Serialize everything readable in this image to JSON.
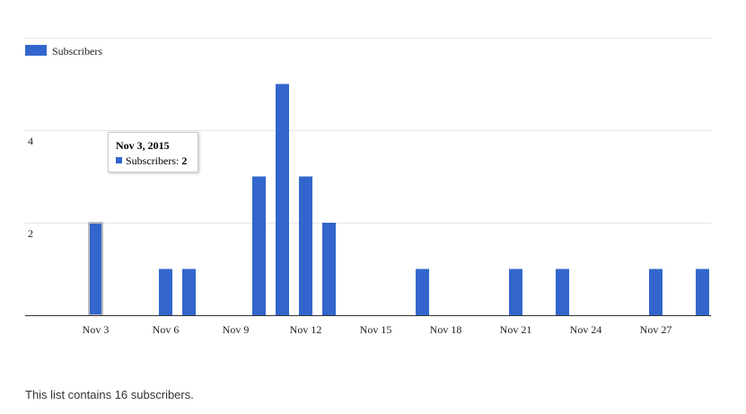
{
  "chart_data": {
    "type": "bar",
    "x": [
      "Nov 1",
      "Nov 2",
      "Nov 3",
      "Nov 4",
      "Nov 5",
      "Nov 6",
      "Nov 7",
      "Nov 8",
      "Nov 9",
      "Nov 10",
      "Nov 11",
      "Nov 12",
      "Nov 13",
      "Nov 14",
      "Nov 15",
      "Nov 16",
      "Nov 17",
      "Nov 18",
      "Nov 19",
      "Nov 20",
      "Nov 21",
      "Nov 22",
      "Nov 23",
      "Nov 24",
      "Nov 25",
      "Nov 26",
      "Nov 27",
      "Nov 28",
      "Nov 29"
    ],
    "series": [
      {
        "name": "Subscribers",
        "color": "#3366cc",
        "values": [
          0,
          0,
          2,
          0,
          0,
          1,
          1,
          0,
          0,
          3,
          5,
          3,
          2,
          0,
          0,
          0,
          1,
          0,
          0,
          0,
          1,
          0,
          1,
          0,
          0,
          0,
          1,
          0,
          1
        ]
      }
    ],
    "x_tick_labels": [
      "Nov 3",
      "Nov 6",
      "Nov 9",
      "Nov 12",
      "Nov 15",
      "Nov 18",
      "Nov 21",
      "Nov 24",
      "Nov 27"
    ],
    "y_tick_labels": [
      "2",
      "4"
    ],
    "ylim": [
      0,
      6
    ],
    "grid": true,
    "legend": "top-left",
    "highlighted_index": 2
  },
  "tooltip": {
    "title": "Nov 3, 2015",
    "series_label": "Subscribers:",
    "value": "2"
  },
  "summary_text": "This list contains 16 subscribers."
}
